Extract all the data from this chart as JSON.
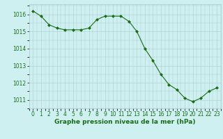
{
  "hours": [
    0,
    1,
    2,
    3,
    4,
    5,
    6,
    7,
    8,
    9,
    10,
    11,
    12,
    13,
    14,
    15,
    16,
    17,
    18,
    19,
    20,
    21,
    22,
    23
  ],
  "pressure": [
    1016.2,
    1015.9,
    1015.4,
    1015.2,
    1015.1,
    1015.1,
    1015.1,
    1015.2,
    1015.7,
    1015.9,
    1015.9,
    1015.9,
    1015.6,
    1015.0,
    1014.0,
    1013.3,
    1012.5,
    1011.9,
    1011.6,
    1011.1,
    1010.9,
    1011.1,
    1011.5,
    1011.7
  ],
  "line_color": "#1a6b1a",
  "marker": "D",
  "marker_size": 2.0,
  "bg_color": "#cff0f0",
  "grid_color": "#aacccc",
  "ylabel_ticks": [
    1011,
    1012,
    1013,
    1014,
    1015,
    1016
  ],
  "xlabel_label": "Graphe pression niveau de la mer (hPa)",
  "ylim": [
    1010.5,
    1016.6
  ],
  "xlim": [
    -0.5,
    23.5
  ],
  "tick_label_color": "#1a6b1a",
  "xlabel_fontsize": 6.5,
  "tick_fontsize": 5.5
}
